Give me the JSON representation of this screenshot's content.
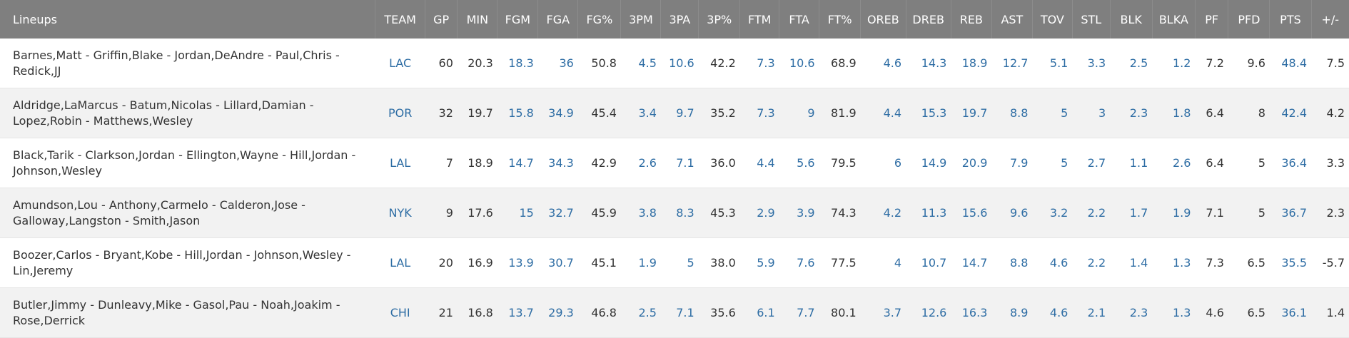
{
  "headers": [
    "Lineups",
    "TEAM",
    "GP",
    "MIN",
    "FGM",
    "FGA",
    "FG%",
    "3PM",
    "3PA",
    "3P%",
    "FTM",
    "FTA",
    "FT%",
    "OREB",
    "DREB",
    "REB",
    "AST",
    "TOV",
    "STL",
    "BLK",
    "BLKA",
    "PF",
    "PFD",
    "PTS",
    "+/-"
  ],
  "colors": {
    "header_bg": "#7f7f7f",
    "link": "#2e6da4",
    "row_alt": "#f2f2f2"
  },
  "rows": [
    {
      "lineup": "Barnes,Matt - Griffin,Blake - Jordan,DeAndre - Paul,Chris - Redick,JJ",
      "team": "LAC",
      "gp": "60",
      "min": "20.3",
      "fgm": "18.3",
      "fga": "36",
      "fg_pct": "50.8",
      "tpm": "4.5",
      "tpa": "10.6",
      "tp_pct": "42.2",
      "ftm": "7.3",
      "fta": "10.6",
      "ft_pct": "68.9",
      "oreb": "4.6",
      "dreb": "14.3",
      "reb": "18.9",
      "ast": "12.7",
      "tov": "5.1",
      "stl": "3.3",
      "blk": "2.5",
      "blka": "1.2",
      "pf": "7.2",
      "pfd": "9.6",
      "pts": "48.4",
      "pm": "7.5"
    },
    {
      "lineup": "Aldridge,LaMarcus - Batum,Nicolas - Lillard,Damian - Lopez,Robin - Matthews,Wesley",
      "team": "POR",
      "gp": "32",
      "min": "19.7",
      "fgm": "15.8",
      "fga": "34.9",
      "fg_pct": "45.4",
      "tpm": "3.4",
      "tpa": "9.7",
      "tp_pct": "35.2",
      "ftm": "7.3",
      "fta": "9",
      "ft_pct": "81.9",
      "oreb": "4.4",
      "dreb": "15.3",
      "reb": "19.7",
      "ast": "8.8",
      "tov": "5",
      "stl": "3",
      "blk": "2.3",
      "blka": "1.8",
      "pf": "6.4",
      "pfd": "8",
      "pts": "42.4",
      "pm": "4.2"
    },
    {
      "lineup": "Black,Tarik - Clarkson,Jordan - Ellington,Wayne - Hill,Jordan - Johnson,Wesley",
      "team": "LAL",
      "gp": "7",
      "min": "18.9",
      "fgm": "14.7",
      "fga": "34.3",
      "fg_pct": "42.9",
      "tpm": "2.6",
      "tpa": "7.1",
      "tp_pct": "36.0",
      "ftm": "4.4",
      "fta": "5.6",
      "ft_pct": "79.5",
      "oreb": "6",
      "dreb": "14.9",
      "reb": "20.9",
      "ast": "7.9",
      "tov": "5",
      "stl": "2.7",
      "blk": "1.1",
      "blka": "2.6",
      "pf": "6.4",
      "pfd": "5",
      "pts": "36.4",
      "pm": "3.3"
    },
    {
      "lineup": "Amundson,Lou - Anthony,Carmelo - Calderon,Jose - Galloway,Langston - Smith,Jason",
      "team": "NYK",
      "gp": "9",
      "min": "17.6",
      "fgm": "15",
      "fga": "32.7",
      "fg_pct": "45.9",
      "tpm": "3.8",
      "tpa": "8.3",
      "tp_pct": "45.3",
      "ftm": "2.9",
      "fta": "3.9",
      "ft_pct": "74.3",
      "oreb": "4.2",
      "dreb": "11.3",
      "reb": "15.6",
      "ast": "9.6",
      "tov": "3.2",
      "stl": "2.2",
      "blk": "1.7",
      "blka": "1.9",
      "pf": "7.1",
      "pfd": "5",
      "pts": "36.7",
      "pm": "2.3"
    },
    {
      "lineup": "Boozer,Carlos - Bryant,Kobe - Hill,Jordan - Johnson,Wesley - Lin,Jeremy",
      "team": "LAL",
      "gp": "20",
      "min": "16.9",
      "fgm": "13.9",
      "fga": "30.7",
      "fg_pct": "45.1",
      "tpm": "1.9",
      "tpa": "5",
      "tp_pct": "38.0",
      "ftm": "5.9",
      "fta": "7.6",
      "ft_pct": "77.5",
      "oreb": "4",
      "dreb": "10.7",
      "reb": "14.7",
      "ast": "8.8",
      "tov": "4.6",
      "stl": "2.2",
      "blk": "1.4",
      "blka": "1.3",
      "pf": "7.3",
      "pfd": "6.5",
      "pts": "35.5",
      "pm": "-5.7"
    },
    {
      "lineup": "Butler,Jimmy - Dunleavy,Mike - Gasol,Pau - Noah,Joakim - Rose,Derrick",
      "team": "CHI",
      "gp": "21",
      "min": "16.8",
      "fgm": "13.7",
      "fga": "29.3",
      "fg_pct": "46.8",
      "tpm": "2.5",
      "tpa": "7.1",
      "tp_pct": "35.6",
      "ftm": "6.1",
      "fta": "7.7",
      "ft_pct": "80.1",
      "oreb": "3.7",
      "dreb": "12.6",
      "reb": "16.3",
      "ast": "8.9",
      "tov": "4.6",
      "stl": "2.1",
      "blk": "2.3",
      "blka": "1.3",
      "pf": "4.6",
      "pfd": "6.5",
      "pts": "36.1",
      "pm": "1.4"
    }
  ]
}
